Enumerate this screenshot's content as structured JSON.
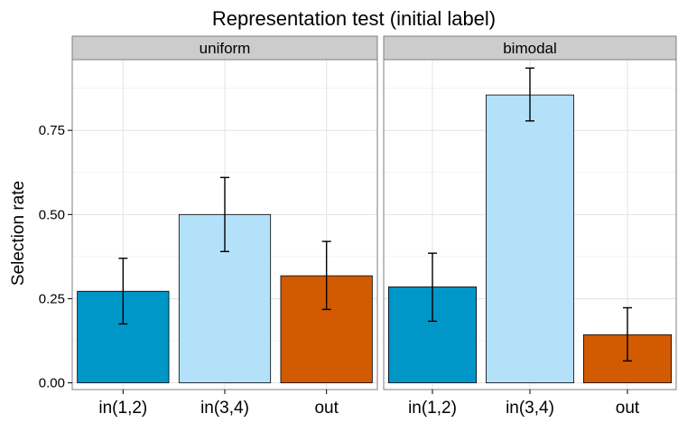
{
  "chart_data": {
    "type": "bar",
    "title": "Representation test (initial label)",
    "xlabel": "",
    "ylabel": "Selection rate",
    "ylim": [
      -0.02,
      0.96
    ],
    "yticks": [
      "0.00",
      "0.25",
      "0.50",
      "0.75"
    ],
    "categories": [
      "in(1,2)",
      "in(3,4)",
      "out"
    ],
    "colors": [
      "#0096c8",
      "#b4e1fa",
      "#d25a00"
    ],
    "grid": true,
    "facets": [
      {
        "label": "uniform",
        "values": [
          0.272,
          0.5,
          0.318
        ],
        "error_low": [
          0.175,
          0.39,
          0.218
        ],
        "error_high": [
          0.37,
          0.61,
          0.42
        ]
      },
      {
        "label": "bimodal",
        "values": [
          0.285,
          0.855,
          0.143
        ],
        "error_low": [
          0.183,
          0.778,
          0.065
        ],
        "error_high": [
          0.385,
          0.935,
          0.223
        ]
      }
    ]
  }
}
